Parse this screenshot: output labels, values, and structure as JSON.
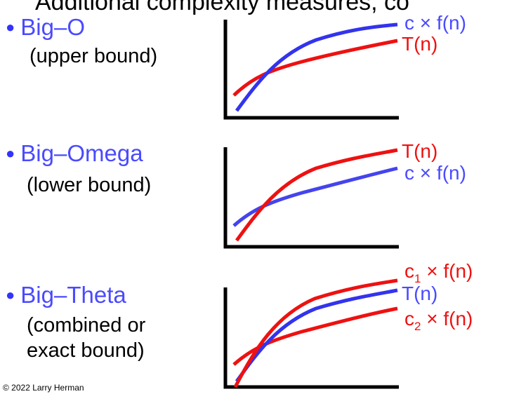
{
  "title_fragment": "Additional complexity measures, co",
  "colors": {
    "blue_curve": "#3333ee",
    "red_curve": "#ee1111",
    "bullet_text": "#4a4aff",
    "axis": "#000000"
  },
  "sections": [
    {
      "bullet": "●",
      "heading": "Big–O",
      "description": [
        "(upper bound)"
      ],
      "curve_labels": {
        "top": "c × f(n)",
        "bottom": "T(n)"
      }
    },
    {
      "bullet": "●",
      "heading": "Big–Omega",
      "description": [
        "(lower bound)"
      ],
      "curve_labels": {
        "top": "T(n)",
        "bottom": "c × f(n)"
      }
    },
    {
      "bullet": "●",
      "heading": "Big–Theta",
      "description": [
        "(combined or",
        "exact bound)"
      ],
      "curve_labels": {
        "top_c": "c",
        "top_sub": "1",
        "top_rest": " × f(n)",
        "middle": "T(n)",
        "bottom_c": "c",
        "bottom_sub": "2",
        "bottom_rest": " × f(n)"
      }
    }
  ],
  "footer": "© 2022 Larry Herman"
}
